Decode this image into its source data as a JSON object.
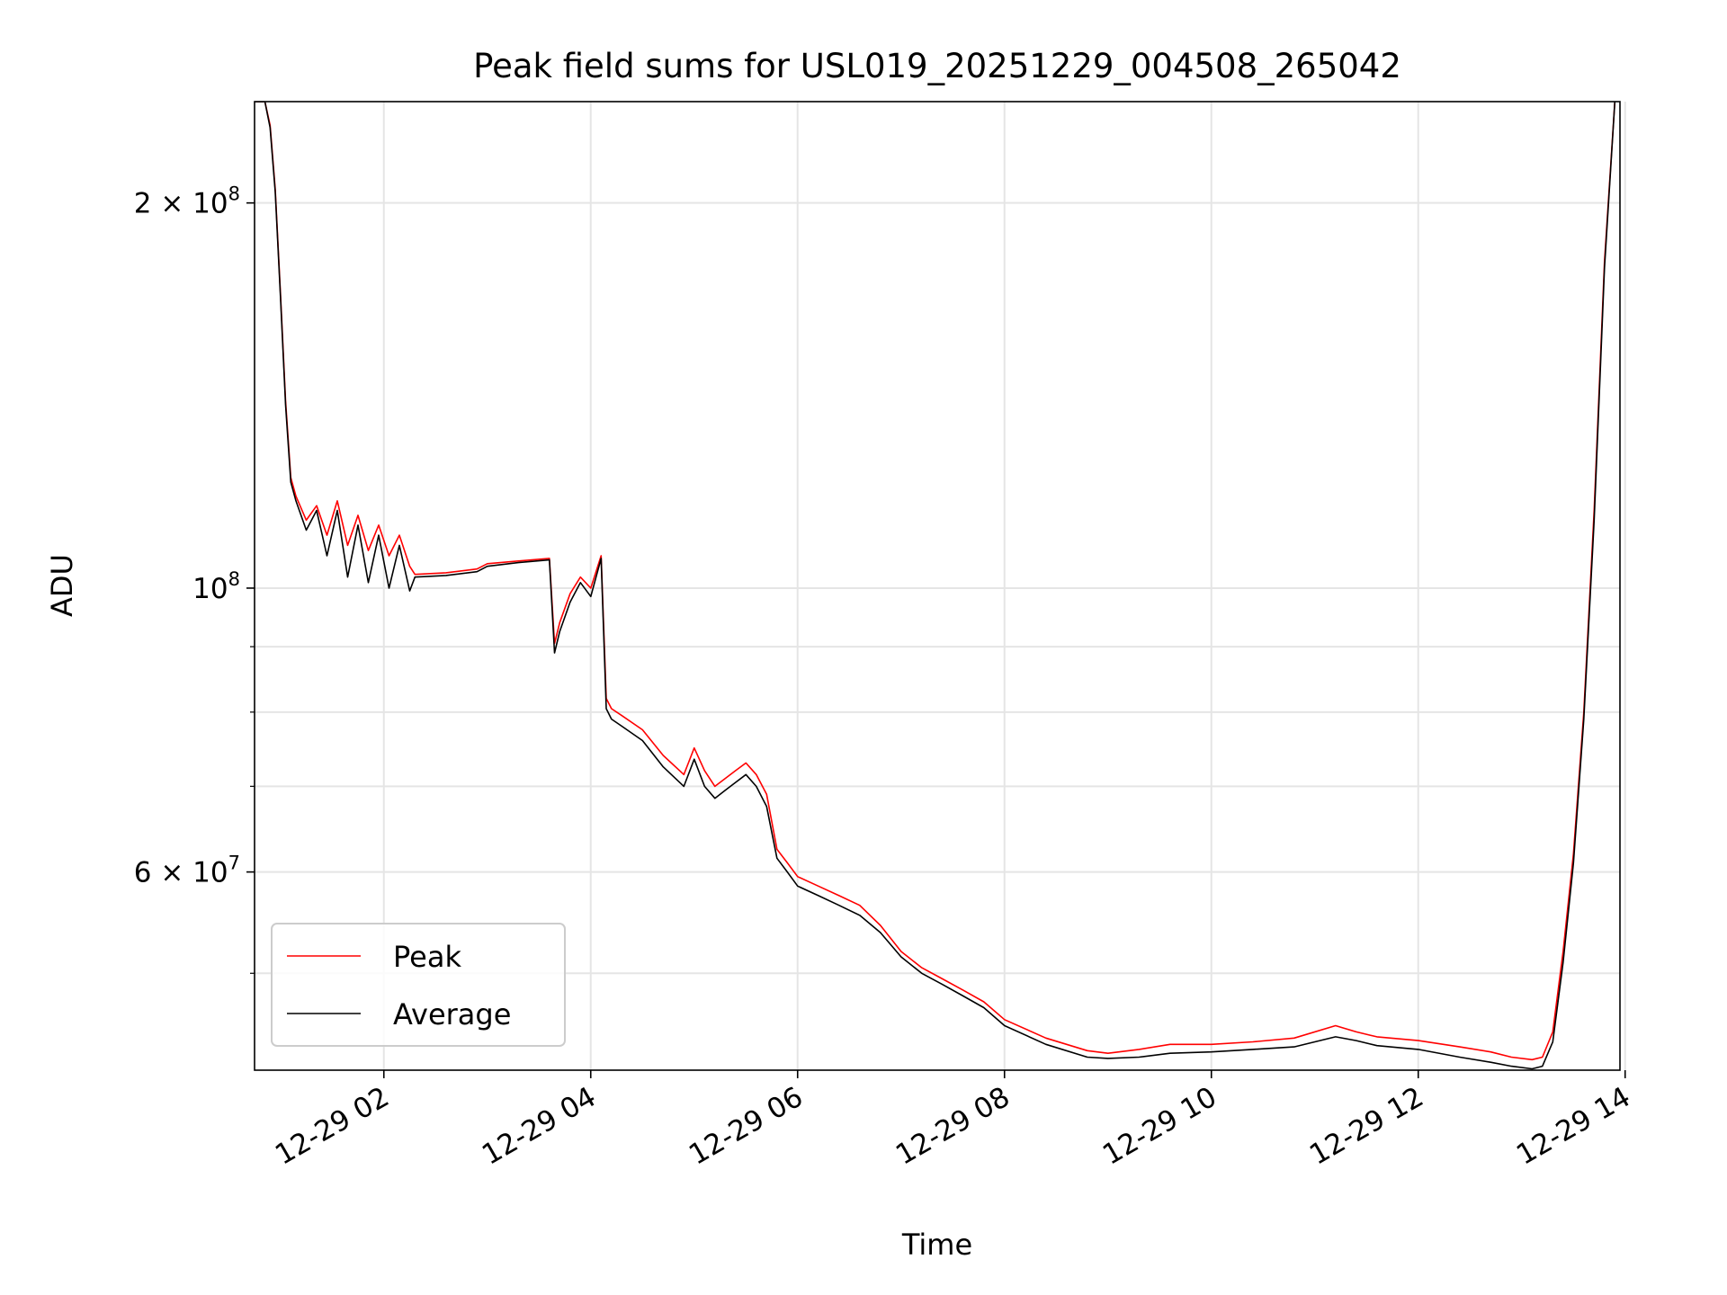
{
  "chart_data": {
    "type": "line",
    "title": "Peak field sums for USL019_20251229_004508_265042",
    "xlabel": "Time",
    "ylabel": "ADU",
    "yscale": "log",
    "xlim_hours": [
      0.75,
      13.95
    ],
    "ylim": [
      42000000,
      240000000
    ],
    "grid": true,
    "legend_position": "lower-left",
    "x_ticks": [
      {
        "hour": 2,
        "label": "12-29 02"
      },
      {
        "hour": 4,
        "label": "12-29 04"
      },
      {
        "hour": 6,
        "label": "12-29 06"
      },
      {
        "hour": 8,
        "label": "12-29 08"
      },
      {
        "hour": 10,
        "label": "12-29 10"
      },
      {
        "hour": 12,
        "label": "12-29 12"
      },
      {
        "hour": 14,
        "label": "12-29 14"
      }
    ],
    "y_ticks": [
      {
        "value": 200000000,
        "base": "2 × 10",
        "exp": "8"
      },
      {
        "value": 100000000,
        "base": "10",
        "exp": "8"
      },
      {
        "value": 60000000,
        "base": "6 × 10",
        "exp": "7"
      }
    ],
    "y_minor_ticks": [
      50000000,
      70000000,
      80000000,
      90000000
    ],
    "series": [
      {
        "name": "Peak",
        "color": "#ff0000",
        "x_hours": [
          0.76,
          0.85,
          0.9,
          0.95,
          1.0,
          1.05,
          1.1,
          1.15,
          1.25,
          1.35,
          1.45,
          1.55,
          1.65,
          1.75,
          1.85,
          1.95,
          2.05,
          2.15,
          2.25,
          2.3,
          2.6,
          2.9,
          3.0,
          3.3,
          3.6,
          3.65,
          3.7,
          3.8,
          3.9,
          4.0,
          4.1,
          4.15,
          4.2,
          4.3,
          4.5,
          4.7,
          4.9,
          5.0,
          5.1,
          5.2,
          5.3,
          5.4,
          5.5,
          5.6,
          5.7,
          5.8,
          5.9,
          6.0,
          6.2,
          6.4,
          6.6,
          6.8,
          7.0,
          7.2,
          7.4,
          7.6,
          7.8,
          8.0,
          8.4,
          8.8,
          9.0,
          9.3,
          9.6,
          10.0,
          10.4,
          10.8,
          11.2,
          11.4,
          11.6,
          12.0,
          12.4,
          12.7,
          12.9,
          13.1,
          13.2,
          13.3,
          13.4,
          13.5,
          13.6,
          13.7,
          13.8,
          13.9
        ],
        "values": [
          240000000,
          240000000,
          230000000,
          205000000,
          170000000,
          140000000,
          122000000,
          118000000,
          113000000,
          116000000,
          110000000,
          117000000,
          108000000,
          114000000,
          107000000,
          112000000,
          106000000,
          110000000,
          104000000,
          102500000,
          102800000,
          103500000,
          104500000,
          105000000,
          105500000,
          90500000,
          94000000,
          99000000,
          102000000,
          100000000,
          106000000,
          82000000,
          80500000,
          79500000,
          77500000,
          74000000,
          71500000,
          75000000,
          72000000,
          70000000,
          71000000,
          72000000,
          73000000,
          71500000,
          69000000,
          62500000,
          61000000,
          59500000,
          58500000,
          57500000,
          56500000,
          54500000,
          52000000,
          50500000,
          49500000,
          48500000,
          47500000,
          46000000,
          44500000,
          43500000,
          43300000,
          43600000,
          44000000,
          44000000,
          44200000,
          44500000,
          45500000,
          45000000,
          44600000,
          44300000,
          43800000,
          43400000,
          43000000,
          42800000,
          43000000,
          45000000,
          52000000,
          62000000,
          80000000,
          115000000,
          180000000,
          240000000
        ]
      },
      {
        "name": "Average",
        "color": "#000000",
        "x_hours": [
          0.76,
          0.85,
          0.9,
          0.95,
          1.0,
          1.05,
          1.1,
          1.15,
          1.25,
          1.35,
          1.45,
          1.55,
          1.65,
          1.75,
          1.85,
          1.95,
          2.05,
          2.15,
          2.25,
          2.3,
          2.6,
          2.9,
          3.0,
          3.3,
          3.6,
          3.65,
          3.7,
          3.8,
          3.9,
          4.0,
          4.1,
          4.15,
          4.2,
          4.3,
          4.5,
          4.7,
          4.9,
          5.0,
          5.1,
          5.2,
          5.3,
          5.4,
          5.5,
          5.6,
          5.7,
          5.8,
          5.9,
          6.0,
          6.2,
          6.4,
          6.6,
          6.8,
          7.0,
          7.2,
          7.4,
          7.6,
          7.8,
          8.0,
          8.4,
          8.8,
          9.0,
          9.3,
          9.6,
          10.0,
          10.4,
          10.8,
          11.2,
          11.4,
          11.6,
          12.0,
          12.4,
          12.7,
          12.9,
          13.1,
          13.2,
          13.3,
          13.4,
          13.5,
          13.6,
          13.7,
          13.8,
          13.9
        ],
        "values": [
          240000000,
          240000000,
          229000000,
          204000000,
          169000000,
          139000000,
          121000000,
          117000000,
          111000000,
          115000000,
          106000000,
          115000000,
          102000000,
          112000000,
          101000000,
          110000000,
          100000000,
          108000000,
          99500000,
          102000000,
          102300000,
          103000000,
          104000000,
          104700000,
          105200000,
          89000000,
          92500000,
          97500000,
          101000000,
          98500000,
          105500000,
          80500000,
          79000000,
          78000000,
          76000000,
          72500000,
          70000000,
          73500000,
          70000000,
          68500000,
          69500000,
          70500000,
          71500000,
          70000000,
          67500000,
          61500000,
          60000000,
          58500000,
          57500000,
          56500000,
          55500000,
          53800000,
          51500000,
          50000000,
          49000000,
          48000000,
          47000000,
          45500000,
          44000000,
          43000000,
          42900000,
          43000000,
          43300000,
          43400000,
          43600000,
          43800000,
          44600000,
          44300000,
          43900000,
          43600000,
          43000000,
          42600000,
          42300000,
          42100000,
          42300000,
          44200000,
          51000000,
          61000000,
          79000000,
          113000000,
          178000000,
          240000000
        ]
      }
    ]
  }
}
